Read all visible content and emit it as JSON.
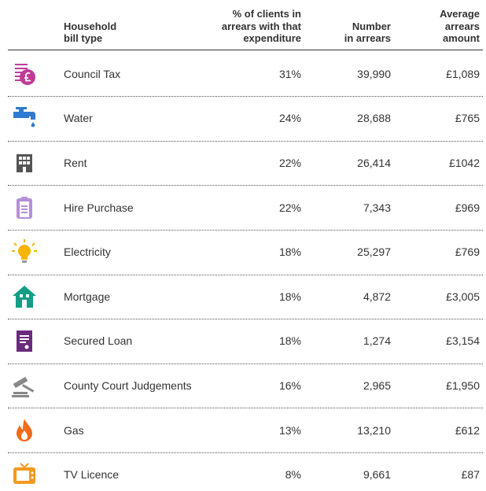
{
  "table": {
    "header": [
      [
        "Household",
        "bill type"
      ],
      [
        "% of clients in",
        "arrears with that",
        "expenditure"
      ],
      [
        "Number",
        "in arrears"
      ],
      [
        "Average",
        "arrears",
        "amount"
      ]
    ],
    "rows": [
      [
        "Council Tax",
        "31%",
        "39,990",
        "£1,089"
      ],
      [
        "Water",
        "24%",
        "28,688",
        "£765"
      ],
      [
        "Rent",
        "22%",
        "26,414",
        "£1042"
      ],
      [
        "Hire Purchase",
        "22%",
        "7,343",
        "£969"
      ],
      [
        "Electricity",
        "18%",
        "25,297",
        "£769"
      ],
      [
        "Mortgage",
        "18%",
        "4,872",
        "£3,005"
      ],
      [
        "Secured Loan",
        "18%",
        "1,274",
        "£3,154"
      ],
      [
        "County Court Judgements",
        "16%",
        "2,965",
        "£1,950"
      ],
      [
        "Gas",
        "13%",
        "13,210",
        "£612"
      ],
      [
        "TV Licence",
        "8%",
        "9,661",
        "£87"
      ]
    ]
  }
}
